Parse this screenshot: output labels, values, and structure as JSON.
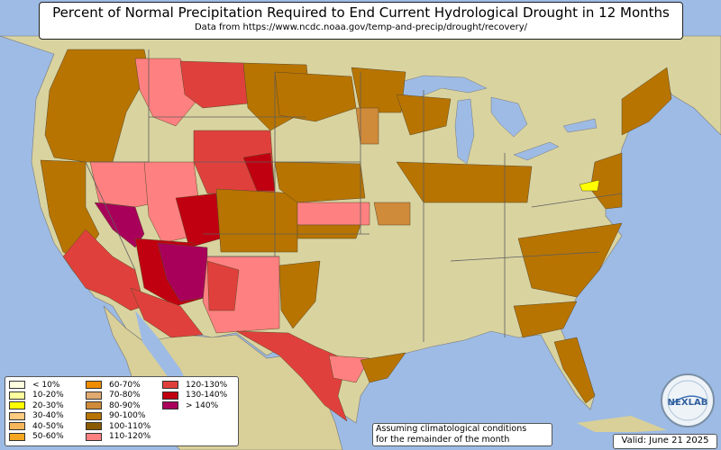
{
  "title": "Percent of Normal Precipitation Required to End Current Hydrological Drought in 12 Months",
  "subtitle": "Data from https://www.ncdc.noaa.gov/temp-and-precip/drought/recovery/",
  "note_lines": [
    "Assuming climatological conditions",
    "for the remainder of the month"
  ],
  "valid": "Valid: June 21 2025",
  "logo_text": "NEXLAB",
  "colors": {
    "ocean": "#9dbbe4",
    "land": "#e6dcaa",
    "land_green": "#d6d99a",
    "borders": "#6b6b6b"
  },
  "legend": [
    {
      "label": "< 10%",
      "color": "#ffffe0"
    },
    {
      "label": "10-20%",
      "color": "#ffff9e"
    },
    {
      "label": "20-30%",
      "color": "#ffff00"
    },
    {
      "label": "30-40%",
      "color": "#ffcc80"
    },
    {
      "label": "40-50%",
      "color": "#f7b65a"
    },
    {
      "label": "50-60%",
      "color": "#f5a623"
    },
    {
      "label": "60-70%",
      "color": "#f08c00"
    },
    {
      "label": "70-80%",
      "color": "#e0a970"
    },
    {
      "label": "80-90%",
      "color": "#cf8a3a"
    },
    {
      "label": "90-100%",
      "color": "#b87400"
    },
    {
      "label": "100-110%",
      "color": "#8b5a00"
    },
    {
      "label": "110-120%",
      "color": "#ff8080"
    },
    {
      "label": "120-130%",
      "color": "#e0403c"
    },
    {
      "label": "130-140%",
      "color": "#c00010"
    },
    {
      "label": "> 140%",
      "color": "#a8005a"
    }
  ]
}
